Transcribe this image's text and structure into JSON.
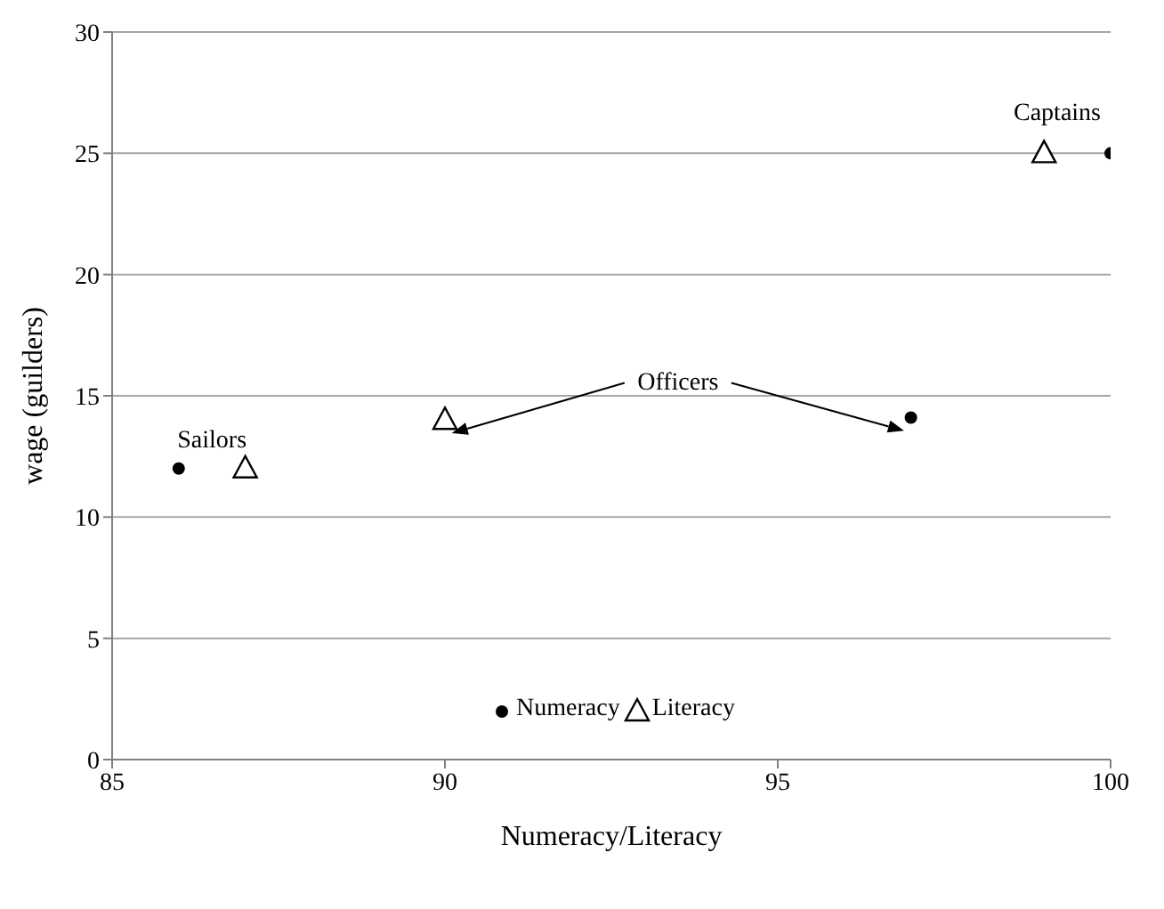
{
  "chart_data": {
    "type": "scatter",
    "xlabel": "Numeracy/Literacy",
    "ylabel": "wage (guilders)",
    "xlim": [
      85,
      100
    ],
    "xticks": [
      85,
      90,
      95,
      100
    ],
    "ylim": [
      0,
      30
    ],
    "yticks": [
      0,
      5,
      10,
      15,
      20,
      25,
      30
    ],
    "grid": "y",
    "legend": "bottom",
    "series": [
      {
        "name": "Numeracy",
        "color": "#000000",
        "marker": "circle",
        "x": [
          86,
          97,
          100
        ],
        "values": [
          12,
          14.1,
          25
        ]
      },
      {
        "name": "Literacy",
        "color": "#000000",
        "marker": "triangle",
        "x": [
          87,
          90,
          99
        ],
        "values": [
          12,
          14,
          25
        ]
      }
    ],
    "annotations": [
      "Sailors",
      "Officers",
      "Captains"
    ]
  }
}
